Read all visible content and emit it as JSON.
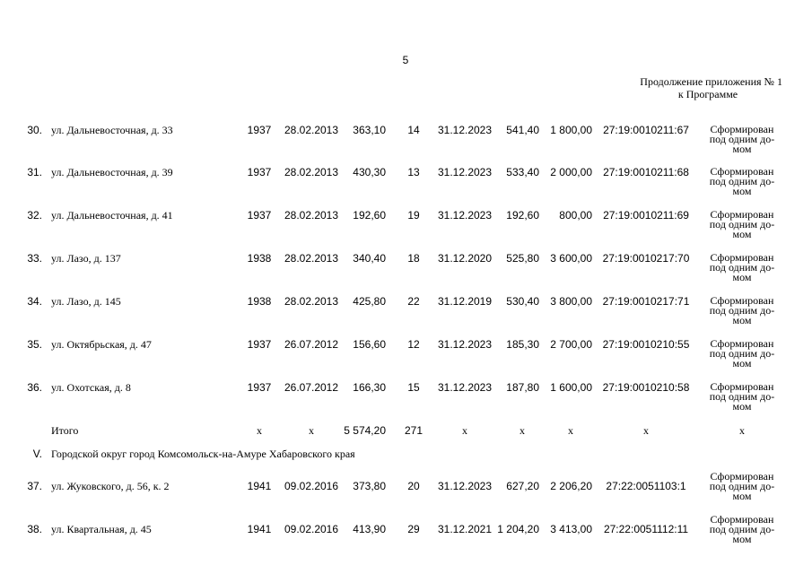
{
  "header": {
    "page_number": "5",
    "note_line1": "Продолжение приложения № 1",
    "note_line2": "к Программе"
  },
  "rows": [
    [
      "30.",
      "ул. Дальневосточная, д. 33",
      "1937",
      "28.02.2013",
      "363,10",
      "14",
      "31.12.2023",
      "541,40",
      "1 800,00",
      "27:19:0010211:67",
      [
        "Сформирован",
        "под одним до-",
        "мом"
      ]
    ],
    [
      "31.",
      "ул. Дальневосточная, д. 39",
      "1937",
      "28.02.2013",
      "430,30",
      "13",
      "31.12.2023",
      "533,40",
      "2 000,00",
      "27:19:0010211:68",
      [
        "Сформирован",
        "под одним до-",
        "мом"
      ]
    ],
    [
      "32.",
      "ул. Дальневосточная, д. 41",
      "1937",
      "28.02.2013",
      "192,60",
      "19",
      "31.12.2023",
      "192,60",
      "800,00",
      "27:19:0010211:69",
      [
        "Сформирован",
        "под одним до-",
        "мом"
      ]
    ],
    [
      "33.",
      "ул. Лазо, д. 137",
      "1938",
      "28.02.2013",
      "340,40",
      "18",
      "31.12.2020",
      "525,80",
      "3 600,00",
      "27:19:0010217:70",
      [
        "Сформирован",
        "под одним до-",
        "мом"
      ]
    ],
    [
      "34.",
      "ул. Лазо, д. 145",
      "1938",
      "28.02.2013",
      "425,80",
      "22",
      "31.12.2019",
      "530,40",
      "3 800,00",
      "27:19:0010217:71",
      [
        "Сформирован",
        "под одним до-",
        "мом"
      ]
    ],
    [
      "35.",
      "ул. Октябрьская, д. 47",
      "1937",
      "26.07.2012",
      "156,60",
      "12",
      "31.12.2023",
      "185,30",
      "2 700,00",
      "27:19:0010210:55",
      [
        "Сформирован",
        "под одним до-",
        "мом"
      ]
    ],
    [
      "36.",
      "ул. Охотская, д. 8",
      "1937",
      "26.07.2012",
      "166,30",
      "15",
      "31.12.2023",
      "187,80",
      "1 600,00",
      "27:19:0010210:58",
      [
        "Сформирован",
        "под одним до-",
        "мом"
      ]
    ]
  ],
  "total": {
    "label": "Итого",
    "cells": [
      "х",
      "х",
      "5 574,20",
      "271",
      "х",
      "х",
      "х",
      "х",
      "х"
    ]
  },
  "section": {
    "number": "V.",
    "title": "Городской округ город Комсомольск-на-Амуре Хабаровского края"
  },
  "section_rows": [
    [
      "37.",
      "ул. Жуковского, д. 56, к. 2",
      "1941",
      "09.02.2016",
      "373,80",
      "20",
      "31.12.2023",
      "627,20",
      "2 206,20",
      "27:22:0051103:1",
      [
        "Сформирован",
        "под одним до-",
        "мом"
      ]
    ],
    [
      "38.",
      "ул. Квартальная, д. 45",
      "1941",
      "09.02.2016",
      "413,90",
      "29",
      "31.12.2021",
      "1 204,20",
      "3 413,00",
      "27:22:0051112:11",
      [
        "Сформирован",
        "под одним до-",
        "мом"
      ]
    ]
  ]
}
